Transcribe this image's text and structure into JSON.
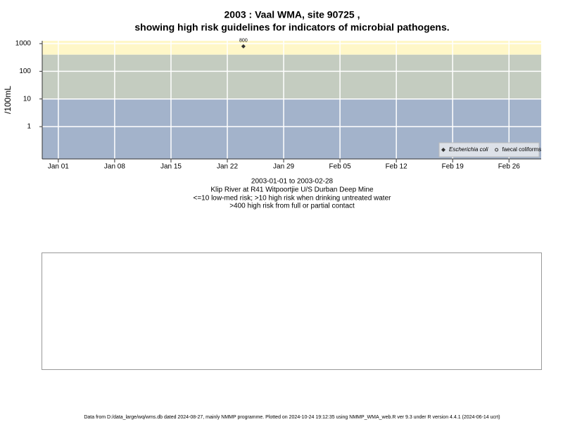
{
  "chart_data": {
    "type": "scatter",
    "title": "2003 : Vaal WMA, site 90725 ,",
    "subtitle": "showing high risk guidelines for indicators of microbial pathogens.",
    "y_label": "/100mL",
    "captions": [
      "2003-01-01 to 2003-02-28",
      "Klip River at R41 Witpoortjie U/S Durban Deep Mine",
      "<=10 low-med risk; >10 high risk when drinking untreated water",
      ">400 high risk from full or partial contact"
    ],
    "footer": "Data from D:/data_large/wq/wms.db dated 2024-08-27, mainly NMMP programme. Plotted on 2024-10-24 19:12:35 using NMMP_WMA_web.R ver 9.3 under R version 4.4.1 (2024-06-14 ucrt)",
    "log_y": true,
    "grid": true,
    "legend_position": "bottom-right",
    "xlim": [
      "2002-12-30",
      "2003-03-02"
    ],
    "xticks": [
      {
        "value": "2003-01-01",
        "label": "Jan 01"
      },
      {
        "value": "2003-01-08",
        "label": "Jan 08"
      },
      {
        "value": "2003-01-15",
        "label": "Jan 15"
      },
      {
        "value": "2003-01-22",
        "label": "Jan 22"
      },
      {
        "value": "2003-01-29",
        "label": "Jan 29"
      },
      {
        "value": "2003-02-05",
        "label": "Feb 05"
      },
      {
        "value": "2003-02-12",
        "label": "Feb 12"
      },
      {
        "value": "2003-02-19",
        "label": "Feb 19"
      },
      {
        "value": "2003-02-26",
        "label": "Feb 26"
      }
    ],
    "ylim": [
      0.068,
      1265
    ],
    "yticks": [
      1,
      10,
      100,
      1000
    ],
    "bands": [
      {
        "to": 10,
        "color": "#a3b3cb"
      },
      {
        "from": 10,
        "to": 400,
        "color": "#c4ccc0"
      },
      {
        "from": 400,
        "color": "#fff7c8"
      }
    ],
    "series": [
      {
        "name": "Escherichia coli",
        "color": "#333333",
        "marker": "diamond",
        "x": [
          "2003-01-24"
        ],
        "values": [
          800
        ],
        "value_labels": [
          "800"
        ]
      },
      {
        "name": "faecal coliforms",
        "color": "#333333",
        "marker": "circle",
        "x": [],
        "values": []
      }
    ]
  }
}
